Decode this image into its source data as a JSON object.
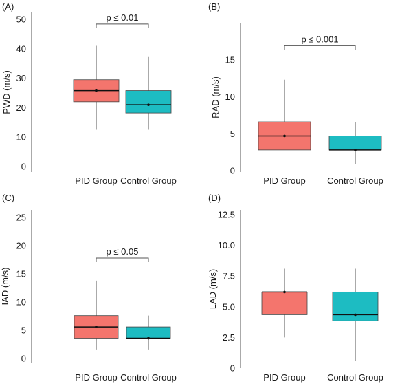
{
  "colors": {
    "pid": "#f4756d",
    "control": "#1dbcc2",
    "axis": "#555555",
    "whisker": "#555555"
  },
  "chart_data": [
    {
      "panel_label": "(A)",
      "type": "box",
      "categories": [
        "PID Group",
        "Control Group"
      ],
      "ylabel": "PWD (m/s)",
      "xlabel": "",
      "ylim": [
        0,
        50
      ],
      "yticks": [
        "0",
        "10",
        "20",
        "30",
        "40",
        "50"
      ],
      "boxes": [
        {
          "name": "PID Group",
          "min": 12.5,
          "q1": 22,
          "median": 25.8,
          "mean": 25.8,
          "q3": 29.5,
          "max": 41
        },
        {
          "name": "Control Group",
          "min": 12.5,
          "q1": 18.2,
          "median": 21,
          "mean": 21,
          "q3": 25.8,
          "max": 37.2
        }
      ],
      "annotation": "p ≤ 0.01",
      "annotation_y": 48.4
    },
    {
      "panel_label": "(B)",
      "type": "box",
      "categories": [
        "PID Group",
        "Control Group"
      ],
      "ylabel": "RAD (m/s)",
      "xlabel": "",
      "ylim": [
        0,
        20
      ],
      "yticks": [
        "0",
        "5",
        "10",
        "15"
      ],
      "boxes": [
        {
          "name": "PID Group",
          "min": 2.8,
          "q1": 2.8,
          "median": 4.7,
          "mean": 4.7,
          "q3": 6.6,
          "max": 12.3
        },
        {
          "name": "Control Group",
          "min": 0.9,
          "q1": 2.8,
          "median": 2.8,
          "mean": 2.8,
          "q3": 4.7,
          "max": 6.6
        }
      ],
      "annotation": "p ≤ 0.001",
      "annotation_y": 16.9
    },
    {
      "panel_label": "(C)",
      "type": "box",
      "categories": [
        "PID Group",
        "Control Group"
      ],
      "ylabel": "IAD (m/s)",
      "xlabel": "",
      "ylim": [
        0,
        25
      ],
      "yticks": [
        "0",
        "5",
        "10",
        "15",
        "20",
        "25"
      ],
      "boxes": [
        {
          "name": "PID Group",
          "min": 1.6,
          "q1": 3.6,
          "median": 5.6,
          "mean": 5.6,
          "q3": 7.6,
          "max": 13.8
        },
        {
          "name": "Control Group",
          "min": 1.6,
          "q1": 3.6,
          "median": 3.6,
          "mean": 3.6,
          "q3": 5.6,
          "max": 7.6
        }
      ],
      "annotation": "p ≤ 0.05",
      "annotation_y": 17.8
    },
    {
      "panel_label": "(D)",
      "type": "box",
      "categories": [
        "PID Group",
        "Control Group"
      ],
      "ylabel": "LAD (m/s)",
      "xlabel": "",
      "ylim": [
        0,
        12.5
      ],
      "yticks": [
        "0",
        "2.5",
        "5.0",
        "7.5",
        "10.0",
        "12.5"
      ],
      "boxes": [
        {
          "name": "PID Group",
          "min": 2.5,
          "q1": 4.35,
          "median": 6.2,
          "mean": 6.2,
          "q3": 6.2,
          "max": 8.1
        },
        {
          "name": "Control Group",
          "min": 0.6,
          "q1": 3.85,
          "median": 4.35,
          "mean": 4.35,
          "q3": 6.2,
          "max": 8.1
        }
      ],
      "annotation": "",
      "annotation_y": null
    }
  ]
}
